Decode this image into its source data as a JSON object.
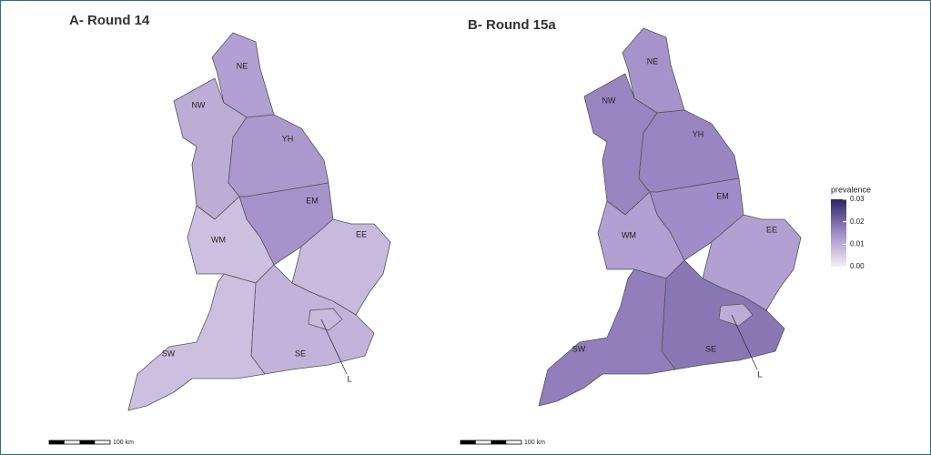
{
  "panels": [
    {
      "title": "A- Round 14",
      "regions": [
        {
          "label": "NE",
          "prevalence": 0.012
        },
        {
          "label": "NW",
          "prevalence": 0.01
        },
        {
          "label": "YH",
          "prevalence": 0.013
        },
        {
          "label": "EM",
          "prevalence": 0.014
        },
        {
          "label": "WM",
          "prevalence": 0.007
        },
        {
          "label": "EE",
          "prevalence": 0.008
        },
        {
          "label": "SE",
          "prevalence": 0.009
        },
        {
          "label": "SW",
          "prevalence": 0.007
        },
        {
          "label": "L",
          "prevalence": 0.008
        }
      ],
      "scale_bar": "100 km"
    },
    {
      "title": "B- Round 15a",
      "regions": [
        {
          "label": "NE",
          "prevalence": 0.014
        },
        {
          "label": "NW",
          "prevalence": 0.016
        },
        {
          "label": "YH",
          "prevalence": 0.016
        },
        {
          "label": "EM",
          "prevalence": 0.015
        },
        {
          "label": "WM",
          "prevalence": 0.012
        },
        {
          "label": "EE",
          "prevalence": 0.012
        },
        {
          "label": "SE",
          "prevalence": 0.018
        },
        {
          "label": "SW",
          "prevalence": 0.017
        },
        {
          "label": "L",
          "prevalence": 0.01
        }
      ],
      "scale_bar": "100 km"
    }
  ],
  "legend": {
    "title": "prevalence",
    "ticks": [
      0.03,
      0.02,
      0.01,
      {
        "value": 0,
        "label": "0.00"
      }
    ]
  }
}
